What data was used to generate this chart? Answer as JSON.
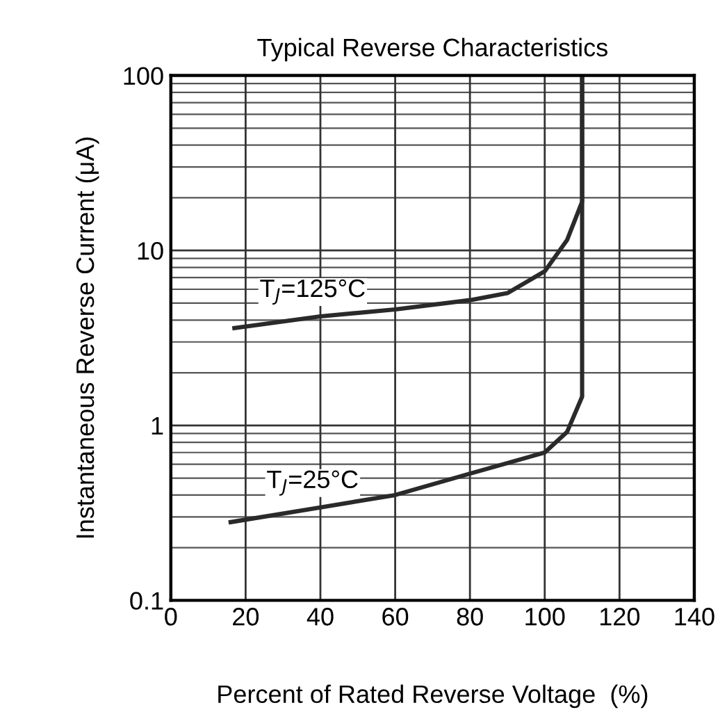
{
  "chart_data": {
    "type": "line",
    "title": "Typical Reverse Characteristics",
    "xlabel": "Percent of Rated Reverse Voltage  (%)",
    "ylabel": "Instantaneous Reverse Current (μA)",
    "log": "y",
    "xlim": [
      0,
      140
    ],
    "xticks": [
      0,
      20,
      40,
      60,
      80,
      100,
      120,
      140
    ],
    "ylim": [
      0.1,
      100
    ],
    "yticks": [
      0.1,
      1,
      10,
      100
    ],
    "grid": true,
    "legend": false,
    "series": [
      {
        "name": "T$_{J}$=125°C",
        "color": "#2a2a2a",
        "x": [
          17,
          40,
          60,
          80,
          90,
          100,
          106,
          110,
          110
        ],
        "values": [
          3.6,
          4.2,
          4.6,
          5.2,
          5.7,
          7.6,
          11.5,
          19,
          100
        ]
      },
      {
        "name": "T$_{J}$=25°C",
        "color": "#2a2a2a",
        "x": [
          16,
          40,
          60,
          80,
          100,
          106,
          110,
          110
        ],
        "values": [
          0.28,
          0.34,
          0.4,
          0.53,
          0.7,
          0.92,
          1.46,
          100
        ]
      }
    ]
  }
}
